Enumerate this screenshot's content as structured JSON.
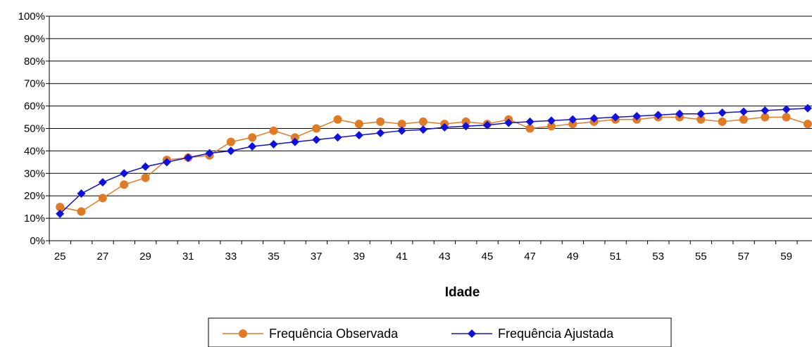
{
  "chart_data": {
    "type": "line",
    "title": "",
    "xlabel": "Idade",
    "ylabel": "",
    "x": [
      25,
      26,
      27,
      28,
      29,
      30,
      31,
      32,
      33,
      34,
      35,
      36,
      37,
      38,
      39,
      40,
      41,
      42,
      43,
      44,
      45,
      46,
      47,
      48,
      49,
      50,
      51,
      52,
      53,
      54,
      55,
      56,
      57,
      58,
      59,
      60
    ],
    "x_tick_labels": [
      "25",
      "27",
      "29",
      "31",
      "33",
      "35",
      "37",
      "39",
      "41",
      "43",
      "45",
      "47",
      "49",
      "51",
      "53",
      "55",
      "57",
      "59"
    ],
    "y_tick_labels": [
      "0%",
      "10%",
      "20%",
      "30%",
      "40%",
      "50%",
      "60%",
      "70%",
      "80%",
      "90%",
      "100%"
    ],
    "ylim": [
      0,
      100
    ],
    "grid": true,
    "legend_position": "bottom",
    "series": [
      {
        "name": "Frequência Observada",
        "color": "#E07B24",
        "marker": "circle",
        "values": [
          15,
          13,
          19,
          25,
          28,
          36,
          37,
          38,
          44,
          46,
          49,
          46,
          50,
          54,
          52,
          53,
          52,
          53,
          52,
          53,
          52,
          54,
          50,
          51,
          52,
          53,
          54,
          54,
          55,
          55,
          54,
          53,
          54,
          55,
          55,
          52
        ]
      },
      {
        "name": "Frequência Ajustada",
        "color": "#1010E0",
        "marker": "diamond",
        "values": [
          12,
          21,
          26,
          30,
          33,
          35,
          37,
          39,
          40,
          42,
          43,
          44,
          45,
          46,
          47,
          48,
          49,
          49.5,
          50.5,
          51,
          51.5,
          52.5,
          53,
          53.5,
          54,
          54.5,
          55,
          55.5,
          56,
          56.5,
          56.5,
          57,
          57.5,
          58,
          58.5,
          59
        ]
      }
    ]
  }
}
